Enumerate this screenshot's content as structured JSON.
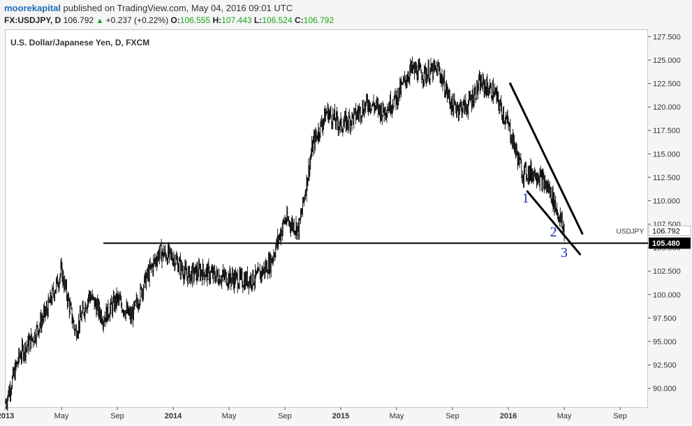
{
  "header": {
    "author": "moorekapital",
    "published_text": "published on TradingView.com, May 04, 2016 09:01 UTC",
    "symbol": "FX:USDJPY, D",
    "last": "106.792",
    "change": "+0.237 (+0.22%)",
    "o_label": "O:",
    "o_value": "106.555",
    "h_label": "H:",
    "h_value": "107.443",
    "l_label": "L:",
    "l_value": "106.524",
    "c_label": "C:",
    "c_value": "106.792",
    "up_arrow": "▲"
  },
  "chart_title": "U.S. Dollar/Japanese Yen, D, FXCM",
  "chart_data": {
    "type": "bar",
    "series_name": "USDJPY",
    "y_ticks": [
      "90.000",
      "92.500",
      "95.000",
      "97.500",
      "100.000",
      "102.500",
      "105.000",
      "107.500",
      "110.000",
      "112.500",
      "115.000",
      "117.500",
      "120.000",
      "122.500",
      "125.000",
      "127.500"
    ],
    "ylim": [
      88.0,
      128.2
    ],
    "x_tick_labels": [
      "2013",
      "May",
      "Sep",
      "2014",
      "May",
      "Sep",
      "2015",
      "May",
      "Sep",
      "2016",
      "May",
      "Sep"
    ],
    "x_tick_dates": [
      "2013-01",
      "2013-05",
      "2013-09",
      "2014-01",
      "2014-05",
      "2014-09",
      "2015-01",
      "2015-05",
      "2015-09",
      "2016-01",
      "2016-05",
      "2016-09"
    ],
    "xlim": [
      "2013-01",
      "2016-11"
    ],
    "price_path": [
      {
        "x": "2013-01",
        "y": 88.5
      },
      {
        "x": "2013-02",
        "y": 93.5
      },
      {
        "x": "2013-03",
        "y": 95.5
      },
      {
        "x": "2013-04",
        "y": 98.5
      },
      {
        "x": "2013-05",
        "y": 102.5
      },
      {
        "x": "2013-06",
        "y": 96.0
      },
      {
        "x": "2013-07",
        "y": 100.0
      },
      {
        "x": "2013-08",
        "y": 97.5
      },
      {
        "x": "2013-09",
        "y": 99.5
      },
      {
        "x": "2013-10",
        "y": 97.5
      },
      {
        "x": "2013-11",
        "y": 101.5
      },
      {
        "x": "2013-12",
        "y": 104.5
      },
      {
        "x": "2014-01",
        "y": 104.0
      },
      {
        "x": "2014-02",
        "y": 102.0
      },
      {
        "x": "2014-03",
        "y": 102.5
      },
      {
        "x": "2014-04",
        "y": 102.0
      },
      {
        "x": "2014-05",
        "y": 101.8
      },
      {
        "x": "2014-06",
        "y": 101.5
      },
      {
        "x": "2014-07",
        "y": 101.8
      },
      {
        "x": "2014-08",
        "y": 103.5
      },
      {
        "x": "2014-09",
        "y": 108.0
      },
      {
        "x": "2014-10",
        "y": 107.0
      },
      {
        "x": "2014-11",
        "y": 116.0
      },
      {
        "x": "2014-12",
        "y": 119.5
      },
      {
        "x": "2015-01",
        "y": 118.0
      },
      {
        "x": "2015-02",
        "y": 119.0
      },
      {
        "x": "2015-03",
        "y": 120.5
      },
      {
        "x": "2015-04",
        "y": 119.5
      },
      {
        "x": "2015-05",
        "y": 121.0
      },
      {
        "x": "2015-06",
        "y": 124.0
      },
      {
        "x": "2015-07",
        "y": 123.5
      },
      {
        "x": "2015-08",
        "y": 124.0
      },
      {
        "x": "2015-09",
        "y": 120.0
      },
      {
        "x": "2015-10",
        "y": 120.0
      },
      {
        "x": "2015-11",
        "y": 122.5
      },
      {
        "x": "2015-12",
        "y": 121.5
      },
      {
        "x": "2016-01",
        "y": 118.0
      },
      {
        "x": "2016-02",
        "y": 113.0
      },
      {
        "x": "2016-03",
        "y": 113.0
      },
      {
        "x": "2016-04",
        "y": 111.0
      },
      {
        "x": "2016-05",
        "y": 106.8
      }
    ],
    "last_price": "106.792",
    "horizontal_line": {
      "y": 105.48,
      "label": "105.480",
      "from": "2013-08"
    },
    "trendlines": [
      {
        "from": {
          "x": "2016-01-05",
          "y": 122.5
        },
        "to": {
          "x": "2016-06-10",
          "y": 106.5
        }
      },
      {
        "from": {
          "x": "2016-02-12",
          "y": 111.0
        },
        "to": {
          "x": "2016-06-05",
          "y": 104.3
        }
      }
    ],
    "wave_labels": [
      {
        "text": "1",
        "x": "2016-02-08",
        "y": 109.8
      },
      {
        "text": "2",
        "x": "2016-04-08",
        "y": 106.2
      },
      {
        "text": "3",
        "x": "2016-05-01",
        "y": 104.0
      }
    ]
  }
}
